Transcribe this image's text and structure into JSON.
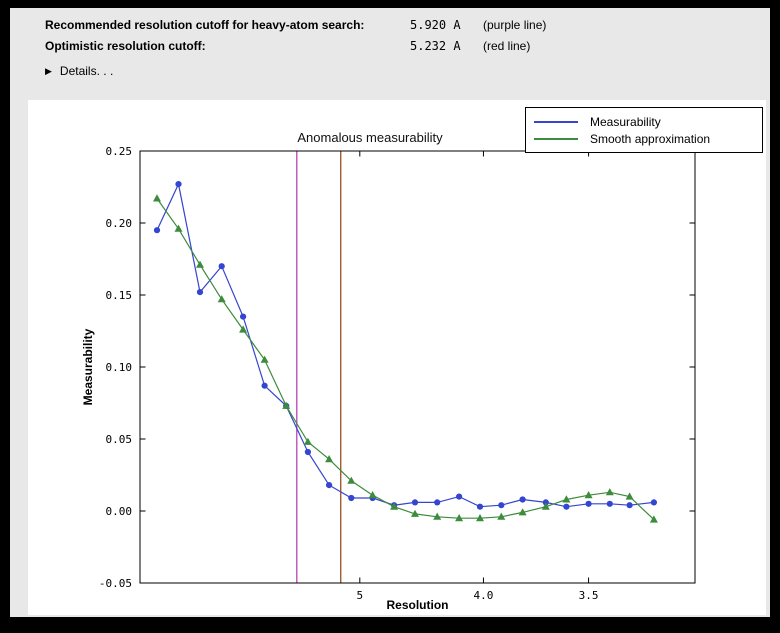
{
  "window": {
    "background": "#000000",
    "panel_background": "#e8e8e8"
  },
  "header": {
    "rows": [
      {
        "label": "Recommended resolution cutoff for heavy-atom search:",
        "value": "5.920 A",
        "note": "(purple line)"
      },
      {
        "label": "Optimistic resolution cutoff:",
        "value": "5.232 A",
        "note": "(red line)"
      }
    ],
    "details": {
      "icon": "▶",
      "label": "Details. . ."
    }
  },
  "chart_data": {
    "type": "line",
    "title": "Anomalous measurability",
    "xlabel": "Resolution",
    "ylabel": "Measurability",
    "grid": false,
    "legend_position": "top-right",
    "x_axis": {
      "scale": "1/d^2",
      "left_s": 0.0,
      "right_s": 0.101,
      "ticks": [
        {
          "d": 5.0,
          "label": "5"
        },
        {
          "d": 4.0,
          "label": "4.0"
        },
        {
          "d": 3.5,
          "label": "3.5"
        }
      ]
    },
    "y_axis": {
      "min": -0.05,
      "max": 0.25,
      "ticks": [
        {
          "v": 0.25,
          "label": "0.25"
        },
        {
          "v": 0.2,
          "label": "0.20"
        },
        {
          "v": 0.15,
          "label": "0.15"
        },
        {
          "v": 0.1,
          "label": "0.10"
        },
        {
          "v": 0.05,
          "label": "0.05"
        },
        {
          "v": 0.0,
          "label": "0.00"
        },
        {
          "v": -0.05,
          "label": "-0.05"
        }
      ]
    },
    "vlines": [
      {
        "d": 5.92,
        "color": "#bb44bb",
        "name": "purple-cutoff-line"
      },
      {
        "d": 5.232,
        "color": "#994d22",
        "name": "red-cutoff-line"
      }
    ],
    "series": [
      {
        "name": "Measurability",
        "color": "#3445cf",
        "marker": "circle",
        "x": [
          17.99,
          11.95,
          9.57,
          8.2,
          7.3,
          6.64,
          6.13,
          5.72,
          5.39,
          5.1,
          4.86,
          4.65,
          4.47,
          4.3,
          4.15,
          4.02,
          3.9,
          3.79,
          3.68,
          3.59,
          3.5,
          3.42,
          3.35,
          3.27
        ],
        "y": [
          0.195,
          0.227,
          0.152,
          0.17,
          0.135,
          0.087,
          0.073,
          0.041,
          0.018,
          0.009,
          0.009,
          0.004,
          0.006,
          0.006,
          0.01,
          0.003,
          0.004,
          0.008,
          0.006,
          0.003,
          0.005,
          0.005,
          0.004,
          0.006
        ]
      },
      {
        "name": "Smooth approximation",
        "color": "#3d8b3d",
        "marker": "triangle",
        "x": [
          17.99,
          11.95,
          9.57,
          8.2,
          7.3,
          6.64,
          6.13,
          5.72,
          5.39,
          5.1,
          4.86,
          4.65,
          4.47,
          4.3,
          4.15,
          4.02,
          3.9,
          3.79,
          3.68,
          3.59,
          3.5,
          3.42,
          3.35,
          3.27
        ],
        "y": [
          0.217,
          0.196,
          0.171,
          0.147,
          0.126,
          0.105,
          0.073,
          0.048,
          0.036,
          0.021,
          0.011,
          0.003,
          -0.002,
          -0.004,
          -0.005,
          -0.005,
          -0.004,
          -0.001,
          0.003,
          0.008,
          0.011,
          0.013,
          0.01,
          -0.006
        ]
      }
    ]
  }
}
